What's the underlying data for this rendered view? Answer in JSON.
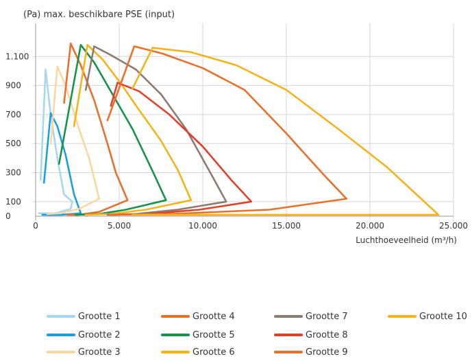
{
  "chart_data": {
    "type": "line",
    "title": "(Pa) max. beschikbare PSE (input)",
    "xlabel": "Luchthoeveelheid (m³/h)",
    "ylabel": "",
    "xlim": [
      0,
      25000
    ],
    "ylim": [
      0,
      1300
    ],
    "x_ticks": [
      {
        "value": 0,
        "label": "0"
      },
      {
        "value": 5000,
        "label": "5.000"
      },
      {
        "value": 10000,
        "label": "10.000"
      },
      {
        "value": 15000,
        "label": "15.000"
      },
      {
        "value": 20000,
        "label": "20.000"
      },
      {
        "value": 25000,
        "label": "25.000"
      }
    ],
    "y_ticks": [
      {
        "value": 0,
        "label": "0"
      },
      {
        "value": 100,
        "label": "100"
      },
      {
        "value": 300,
        "label": "300"
      },
      {
        "value": 500,
        "label": "500"
      },
      {
        "value": 700,
        "label": "700"
      },
      {
        "value": 900,
        "label": "900"
      },
      {
        "value": 1100,
        "label": "1.100"
      }
    ],
    "grid": true,
    "legend_position": "bottom",
    "series": [
      {
        "name": "Grootte 1",
        "color": "#a7d8f0",
        "points": [
          [
            300,
            250
          ],
          [
            600,
            1010
          ],
          [
            900,
            700
          ],
          [
            1300,
            400
          ],
          [
            1700,
            150
          ],
          [
            2200,
            100
          ],
          [
            2100,
            50
          ],
          [
            1200,
            20
          ],
          [
            200,
            20
          ]
        ]
      },
      {
        "name": "Grootte 2",
        "color": "#1aa0dc",
        "points": [
          [
            500,
            230
          ],
          [
            900,
            710
          ],
          [
            1300,
            620
          ],
          [
            1800,
            420
          ],
          [
            2300,
            150
          ],
          [
            2700,
            20
          ],
          [
            1500,
            10
          ],
          [
            400,
            10
          ]
        ]
      },
      {
        "name": "Grootte 3",
        "color": "#fad7a0",
        "points": [
          [
            900,
            500
          ],
          [
            1300,
            1030
          ],
          [
            1800,
            900
          ],
          [
            2600,
            600
          ],
          [
            3200,
            400
          ],
          [
            3800,
            120
          ],
          [
            2600,
            50
          ],
          [
            1500,
            20
          ],
          [
            700,
            15
          ]
        ]
      },
      {
        "name": "Grootte 4",
        "color": "#e8702a",
        "points": [
          [
            1700,
            780
          ],
          [
            2100,
            1190
          ],
          [
            2700,
            1040
          ],
          [
            3500,
            800
          ],
          [
            4300,
            500
          ],
          [
            4800,
            300
          ],
          [
            5500,
            110
          ],
          [
            3800,
            30
          ],
          [
            2600,
            10
          ],
          [
            1900,
            10
          ]
        ]
      },
      {
        "name": "Grootte 5",
        "color": "#14934a",
        "points": [
          [
            1400,
            360
          ],
          [
            2700,
            1180
          ],
          [
            3500,
            1060
          ],
          [
            4500,
            860
          ],
          [
            5800,
            600
          ],
          [
            7000,
            310
          ],
          [
            7800,
            110
          ],
          [
            5400,
            45
          ],
          [
            3800,
            15
          ],
          [
            2400,
            10
          ]
        ]
      },
      {
        "name": "Grootte 6",
        "color": "#f5b31a",
        "points": [
          [
            2300,
            620
          ],
          [
            3100,
            1180
          ],
          [
            4000,
            1080
          ],
          [
            5000,
            930
          ],
          [
            6200,
            730
          ],
          [
            7500,
            520
          ],
          [
            8500,
            320
          ],
          [
            9300,
            110
          ],
          [
            6600,
            45
          ],
          [
            4500,
            15
          ],
          [
            3000,
            10
          ]
        ]
      },
      {
        "name": "Grootte 7",
        "color": "#8c7b70",
        "points": [
          [
            3000,
            870
          ],
          [
            3500,
            1170
          ],
          [
            4500,
            1110
          ],
          [
            6000,
            1010
          ],
          [
            7500,
            840
          ],
          [
            9000,
            600
          ],
          [
            10500,
            290
          ],
          [
            11400,
            100
          ],
          [
            8500,
            45
          ],
          [
            6000,
            15
          ],
          [
            4300,
            10
          ]
        ]
      },
      {
        "name": "Grootte 8",
        "color": "#e2402a",
        "points": [
          [
            4500,
            760
          ],
          [
            4900,
            920
          ],
          [
            6200,
            860
          ],
          [
            8000,
            700
          ],
          [
            10000,
            480
          ],
          [
            11700,
            250
          ],
          [
            12900,
            100
          ],
          [
            9800,
            45
          ],
          [
            6700,
            15
          ],
          [
            4600,
            10
          ]
        ]
      },
      {
        "name": "Grootte 9",
        "color": "#e8702a",
        "points": [
          [
            4300,
            660
          ],
          [
            5900,
            1170
          ],
          [
            7600,
            1120
          ],
          [
            10000,
            1020
          ],
          [
            12500,
            870
          ],
          [
            15000,
            570
          ],
          [
            17200,
            290
          ],
          [
            18600,
            120
          ],
          [
            14000,
            45
          ],
          [
            8000,
            15
          ],
          [
            4400,
            10
          ]
        ]
      },
      {
        "name": "Grootte 10",
        "color": "#f5b31a",
        "points": [
          [
            5800,
            880
          ],
          [
            7000,
            1160
          ],
          [
            9300,
            1130
          ],
          [
            12000,
            1040
          ],
          [
            15000,
            870
          ],
          [
            18000,
            610
          ],
          [
            21000,
            340
          ],
          [
            24100,
            10
          ],
          [
            16000,
            10
          ],
          [
            10000,
            10
          ],
          [
            5800,
            10
          ]
        ]
      }
    ]
  }
}
